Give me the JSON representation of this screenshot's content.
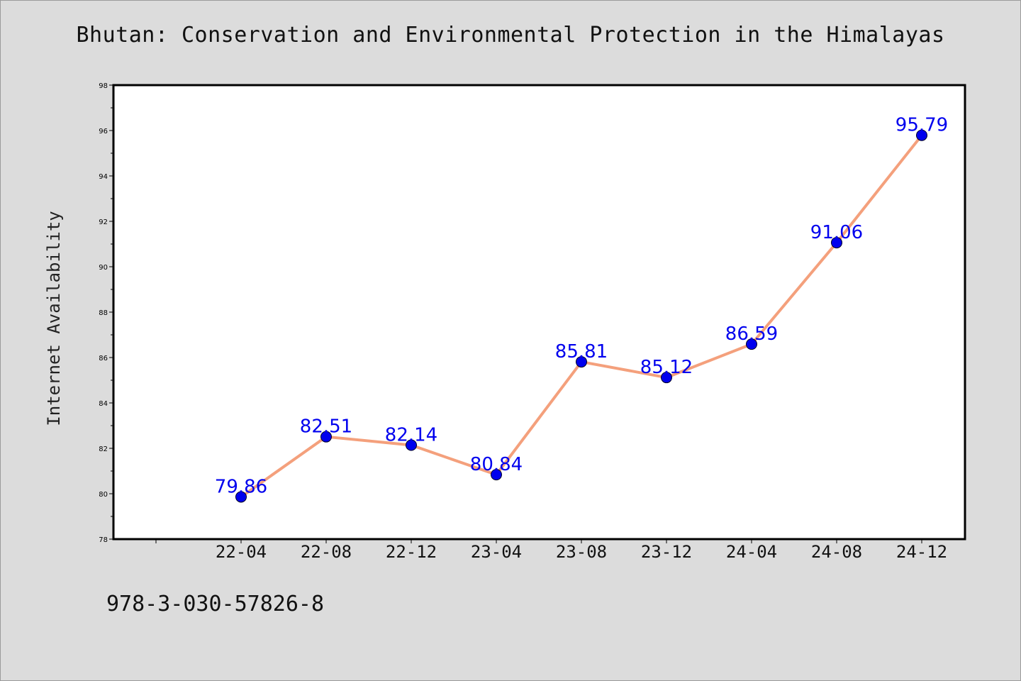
{
  "chart_data": {
    "type": "line",
    "title": "Bhutan: Conservation and Environmental Protection in the Himalayas",
    "xlabel": "",
    "ylabel": "Internet Availability",
    "categories": [
      "22-04",
      "22-08",
      "22-12",
      "23-04",
      "23-08",
      "23-12",
      "24-04",
      "24-08",
      "24-12"
    ],
    "series": [
      {
        "values": [
          79.86,
          82.51,
          82.14,
          80.84,
          85.81,
          85.12,
          86.59,
          91.06,
          95.79
        ],
        "labels": [
          "79.86",
          "82.51",
          "82.14",
          "80.84",
          "85.81",
          "85.12",
          "86.59",
          "91.06",
          "95.79"
        ],
        "line_color": "#f4a07c",
        "marker_color": "#0000ee",
        "label_color": "#0000ee"
      }
    ],
    "ylim": [
      78,
      98
    ],
    "y_ticks": [
      "78",
      "80",
      "82",
      "84",
      "86",
      "88",
      "90",
      "92",
      "94",
      "96",
      "98"
    ],
    "grid": false
  },
  "footer": {
    "code": "978-3-030-57826-8"
  },
  "colors": {
    "background": "#dcdcdc",
    "plot_background": "#ffffff",
    "axis": "#000000"
  }
}
